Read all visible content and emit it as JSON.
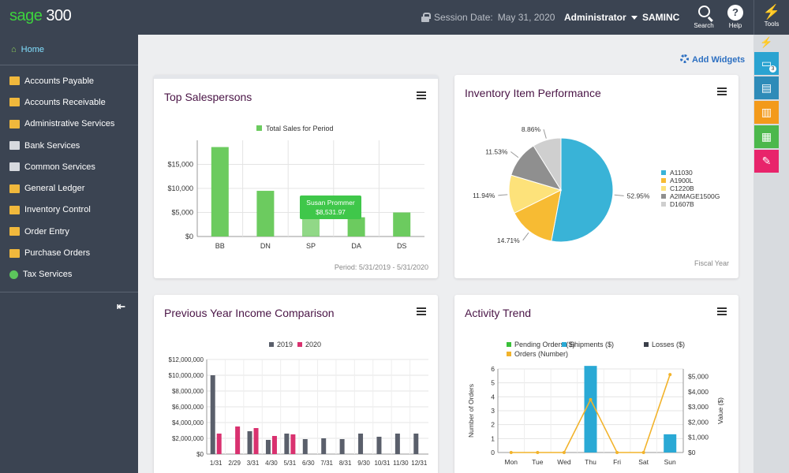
{
  "app": {
    "logo_a": "sage",
    "logo_b": " 300"
  },
  "header": {
    "session_label": "Session Date:",
    "session_date": "May 31, 2020",
    "user": "Administrator",
    "company": "SAMINC",
    "search_label": "Search",
    "help_label": "Help",
    "help_glyph": "?"
  },
  "rail": {
    "tools_label": "Tools",
    "badge": "3",
    "colors": [
      "#2aa3d1",
      "#2e8bb8",
      "#f39a1b",
      "#4cb84c",
      "#e8246b"
    ]
  },
  "sidebar": {
    "home": "Home",
    "items": [
      {
        "label": "Accounts Payable",
        "icon": "payable-icon"
      },
      {
        "label": "Accounts Receivable",
        "icon": "receivable-icon"
      },
      {
        "label": "Administrative Services",
        "icon": "admin-icon"
      },
      {
        "label": "Bank Services",
        "icon": "bank-icon"
      },
      {
        "label": "Common Services",
        "icon": "common-icon"
      },
      {
        "label": "General Ledger",
        "icon": "ledger-icon"
      },
      {
        "label": "Inventory Control",
        "icon": "inventory-icon"
      },
      {
        "label": "Order Entry",
        "icon": "order-icon"
      },
      {
        "label": "Purchase Orders",
        "icon": "purchase-icon"
      },
      {
        "label": "Tax Services",
        "icon": "tax-icon"
      }
    ]
  },
  "content": {
    "add_widgets": "Add Widgets"
  },
  "widgets": {
    "sales": {
      "title": "Top Salespersons",
      "footer": "Period: 5/31/2019 - 5/31/2020",
      "tooltip_name": "Susan Prommer",
      "tooltip_value": "$8,531.97"
    },
    "inventory": {
      "title": "Inventory Item Performance",
      "footer": "Fiscal Year"
    },
    "income": {
      "title": "Previous Year Income Comparison"
    },
    "activity": {
      "title": "Activity Trend"
    }
  },
  "chart_data": [
    {
      "type": "bar",
      "legend": [
        "Total Sales for Period"
      ],
      "categories": [
        "BB",
        "DN",
        "SP",
        "DA",
        "DS"
      ],
      "series": [
        {
          "name": "Total Sales for Period",
          "values": [
            18600,
            9500,
            8531.97,
            4000,
            5000
          ]
        }
      ],
      "ylim": [
        0,
        20000
      ],
      "yticks": [
        "$0",
        "$5,000",
        "$10,000",
        "$15,000"
      ],
      "color": "#6ccb5f"
    },
    {
      "type": "pie",
      "slices": [
        {
          "label": "A11030",
          "percent_label": "52.95%",
          "value": 52.95,
          "color": "#39b3d7"
        },
        {
          "label": "A1900L",
          "percent_label": "14.71%",
          "value": 14.71,
          "color": "#f7bb33"
        },
        {
          "label": "C1220B",
          "percent_label": "11.94%",
          "value": 11.94,
          "color": "#fde27a"
        },
        {
          "label": "A2IMAGE1500G",
          "percent_label": "11.53%",
          "value": 11.53,
          "color": "#8f8f8f"
        },
        {
          "label": "D1607B",
          "percent_label": "8.86%",
          "value": 8.86,
          "color": "#cfcfcf"
        }
      ]
    },
    {
      "type": "bar",
      "categories": [
        "1/31",
        "2/29",
        "3/31",
        "4/30",
        "5/31",
        "6/30",
        "7/31",
        "8/31",
        "9/30",
        "10/31",
        "11/30",
        "12/31"
      ],
      "series": [
        {
          "name": "2019",
          "color": "#5a5f6b",
          "values": [
            10000000,
            0,
            2900000,
            1800000,
            2600000,
            1900000,
            2000000,
            1900000,
            2600000,
            2200000,
            2600000,
            2600000
          ]
        },
        {
          "name": "2020",
          "color": "#d9316f",
          "values": [
            2600000,
            3500000,
            3300000,
            2300000,
            2500000,
            0,
            0,
            0,
            0,
            0,
            0,
            0
          ]
        }
      ],
      "ylim": [
        0,
        12000000
      ],
      "yticks": [
        "$0",
        "$2,000,000",
        "$4,000,000",
        "$6,000,000",
        "$8,000,000",
        "$10,000,000",
        "$12,000,000"
      ]
    },
    {
      "type": "bar",
      "categories": [
        "Mon",
        "Tue",
        "Wed",
        "Thu",
        "Fri",
        "Sat",
        "Sun"
      ],
      "legend": [
        {
          "name": "Pending Orders ($)",
          "color": "#38c038"
        },
        {
          "name": "Shipments ($)",
          "color": "#2aa9d5"
        },
        {
          "name": "Losses ($)",
          "color": "#3a3f4a"
        },
        {
          "name": "Orders (Number)",
          "color": "#f2b32b"
        }
      ],
      "series": [
        {
          "name": "Shipments ($)",
          "values": [
            0,
            0,
            0,
            5700,
            0,
            0,
            1200
          ]
        },
        {
          "name": "Orders (Number)",
          "values": [
            0,
            0,
            0,
            3.8,
            0,
            0,
            5.6
          ]
        }
      ],
      "ylabel": "Number of Orders",
      "y2label": "Value ($)",
      "ylim": [
        0,
        6
      ],
      "y2lim": [
        0,
        5500
      ],
      "yticks": [
        "0",
        "1",
        "2",
        "3",
        "4",
        "5",
        "6"
      ],
      "y2ticks": [
        "$0",
        "$1,000",
        "$2,000",
        "$3,000",
        "$4,000",
        "$5,000"
      ]
    }
  ]
}
